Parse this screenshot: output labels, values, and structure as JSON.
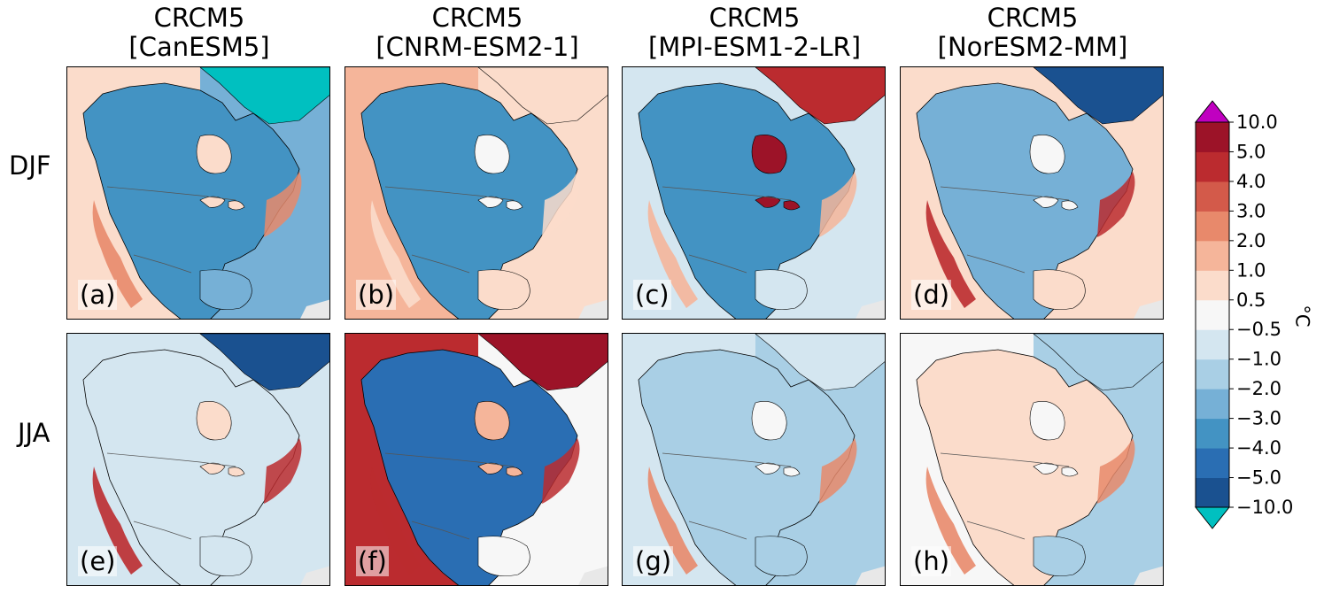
{
  "chart_data": {
    "type": "heatmap",
    "columns": [
      "CRCM5\n[CanESM5]",
      "CRCM5\n[CNRM-ESM2-1]",
      "CRCM5\n[MPI-ESM1-2-LR]",
      "CRCM5\n[NorESM2-MM]"
    ],
    "column_titles": [
      {
        "line1": "CRCM5",
        "line2": "[CanESM5]"
      },
      {
        "line1": "CRCM5",
        "line2": "[CNRM-ESM2-1]"
      },
      {
        "line1": "CRCM5",
        "line2": "[MPI-ESM1-2-LR]"
      },
      {
        "line1": "CRCM5",
        "line2": "[NorESM2-MM]"
      }
    ],
    "rows": [
      "DJF",
      "JJA"
    ],
    "panels": [
      {
        "label": "(a)",
        "season": "DJF",
        "model": "CanESM5",
        "ocean_west": 1.0,
        "ocean_east": -2.0,
        "land": -3.0,
        "arctic": -10.5,
        "hudson": 1.0,
        "warm_coast": 3.0
      },
      {
        "label": "(b)",
        "season": "DJF",
        "model": "CNRM-ESM2-1",
        "ocean_west": 2.0,
        "ocean_east": 1.0,
        "land": -3.0,
        "arctic": 1.0,
        "hudson": 0.3,
        "warm_coast": 1.0
      },
      {
        "label": "(c)",
        "season": "DJF",
        "model": "MPI-ESM1-2-LR",
        "ocean_west": -0.6,
        "ocean_east": -0.6,
        "land": -3.0,
        "arctic": 4.5,
        "hudson": 7.0,
        "warm_coast": 2.0
      },
      {
        "label": "(d)",
        "season": "DJF",
        "model": "NorESM2-MM",
        "ocean_west": 1.0,
        "ocean_east": 1.0,
        "land": -2.0,
        "arctic": -5.5,
        "hudson": 0.3,
        "warm_coast": 5.0
      },
      {
        "label": "(e)",
        "season": "JJA",
        "model": "CanESM5",
        "ocean_west": -0.6,
        "ocean_east": -0.6,
        "land": -0.6,
        "arctic": -5.5,
        "hudson": 1.0,
        "warm_coast": 5.0
      },
      {
        "label": "(f)",
        "season": "JJA",
        "model": "CNRM-ESM2-1",
        "ocean_west": 5.0,
        "ocean_east": 0.3,
        "land": -4.0,
        "arctic": 7.0,
        "hudson": 2.0,
        "warm_coast": 5.0
      },
      {
        "label": "(g)",
        "season": "JJA",
        "model": "MPI-ESM1-2-LR",
        "ocean_west": -0.6,
        "ocean_east": -1.5,
        "land": -1.0,
        "arctic": -0.6,
        "hudson": 0.3,
        "warm_coast": 3.0
      },
      {
        "label": "(h)",
        "season": "JJA",
        "model": "NorESM2-MM",
        "ocean_west": 0.3,
        "ocean_east": -1.0,
        "land": 1.0,
        "arctic": -1.5,
        "hudson": 0.3,
        "warm_coast": 3.0
      }
    ],
    "colorbar": {
      "levels": [
        -10.0,
        -5.0,
        -4.0,
        -3.0,
        -2.0,
        -1.0,
        -0.5,
        0.5,
        1.0,
        2.0,
        3.0,
        4.0,
        5.0,
        10.0
      ],
      "tick_labels": [
        "−10.0",
        "−5.0",
        "−4.0",
        "−3.0",
        "−2.0",
        "−1.0",
        "−0.5",
        "0.5",
        "1.0",
        "2.0",
        "3.0",
        "4.0",
        "5.0",
        "10.0"
      ],
      "colors": [
        "#1a5190",
        "#2a6eb3",
        "#4393c3",
        "#76b0d6",
        "#a9cfe5",
        "#d4e6f0",
        "#f7f7f7",
        "#fbdccb",
        "#f5b59a",
        "#e8896b",
        "#d35a4a",
        "#bb2b2f",
        "#9c1328"
      ],
      "extend_low_color": "#00c0c0",
      "extend_high_color": "#c000c0",
      "unit": "°C"
    },
    "land_color": "#e8e8e8"
  }
}
